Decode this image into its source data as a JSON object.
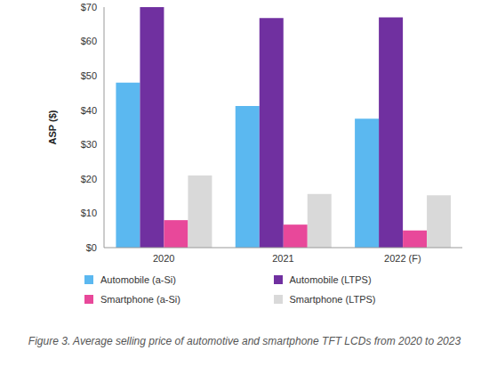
{
  "chart_data": {
    "type": "bar",
    "caption": "Figure 3. Average selling price of automotive and smartphone TFT LCDs from 2020 to 2023",
    "y_label": "ASP ($)",
    "categories": [
      "2020",
      "2021",
      "2022 (F)"
    ],
    "series": [
      {
        "name": "Automobile (a-Si)",
        "color": "#5bb8f0",
        "values": [
          48,
          41.2,
          37.5
        ]
      },
      {
        "name": "Automobile (LTPS)",
        "color": "#7030a0",
        "values": [
          70,
          66.8,
          67
        ]
      },
      {
        "name": "Smartphone (a-Si)",
        "color": "#e8489a",
        "values": [
          8,
          6.7,
          5
        ]
      },
      {
        "name": "Smartphone (LTPS)",
        "color": "#d9d9d9",
        "values": [
          21,
          15.6,
          15.2
        ]
      }
    ],
    "ylim": [
      0,
      70
    ],
    "yticks": [
      {
        "value": 0,
        "label": "$0"
      },
      {
        "value": 10,
        "label": "$10"
      },
      {
        "value": 20,
        "label": "$20"
      },
      {
        "value": 30,
        "label": "$30"
      },
      {
        "value": 40,
        "label": "$40"
      },
      {
        "value": 50,
        "label": "$50"
      },
      {
        "value": 60,
        "label": "$60"
      },
      {
        "value": 70,
        "label": "$70"
      }
    ],
    "grid": false,
    "legend": "bottom"
  }
}
